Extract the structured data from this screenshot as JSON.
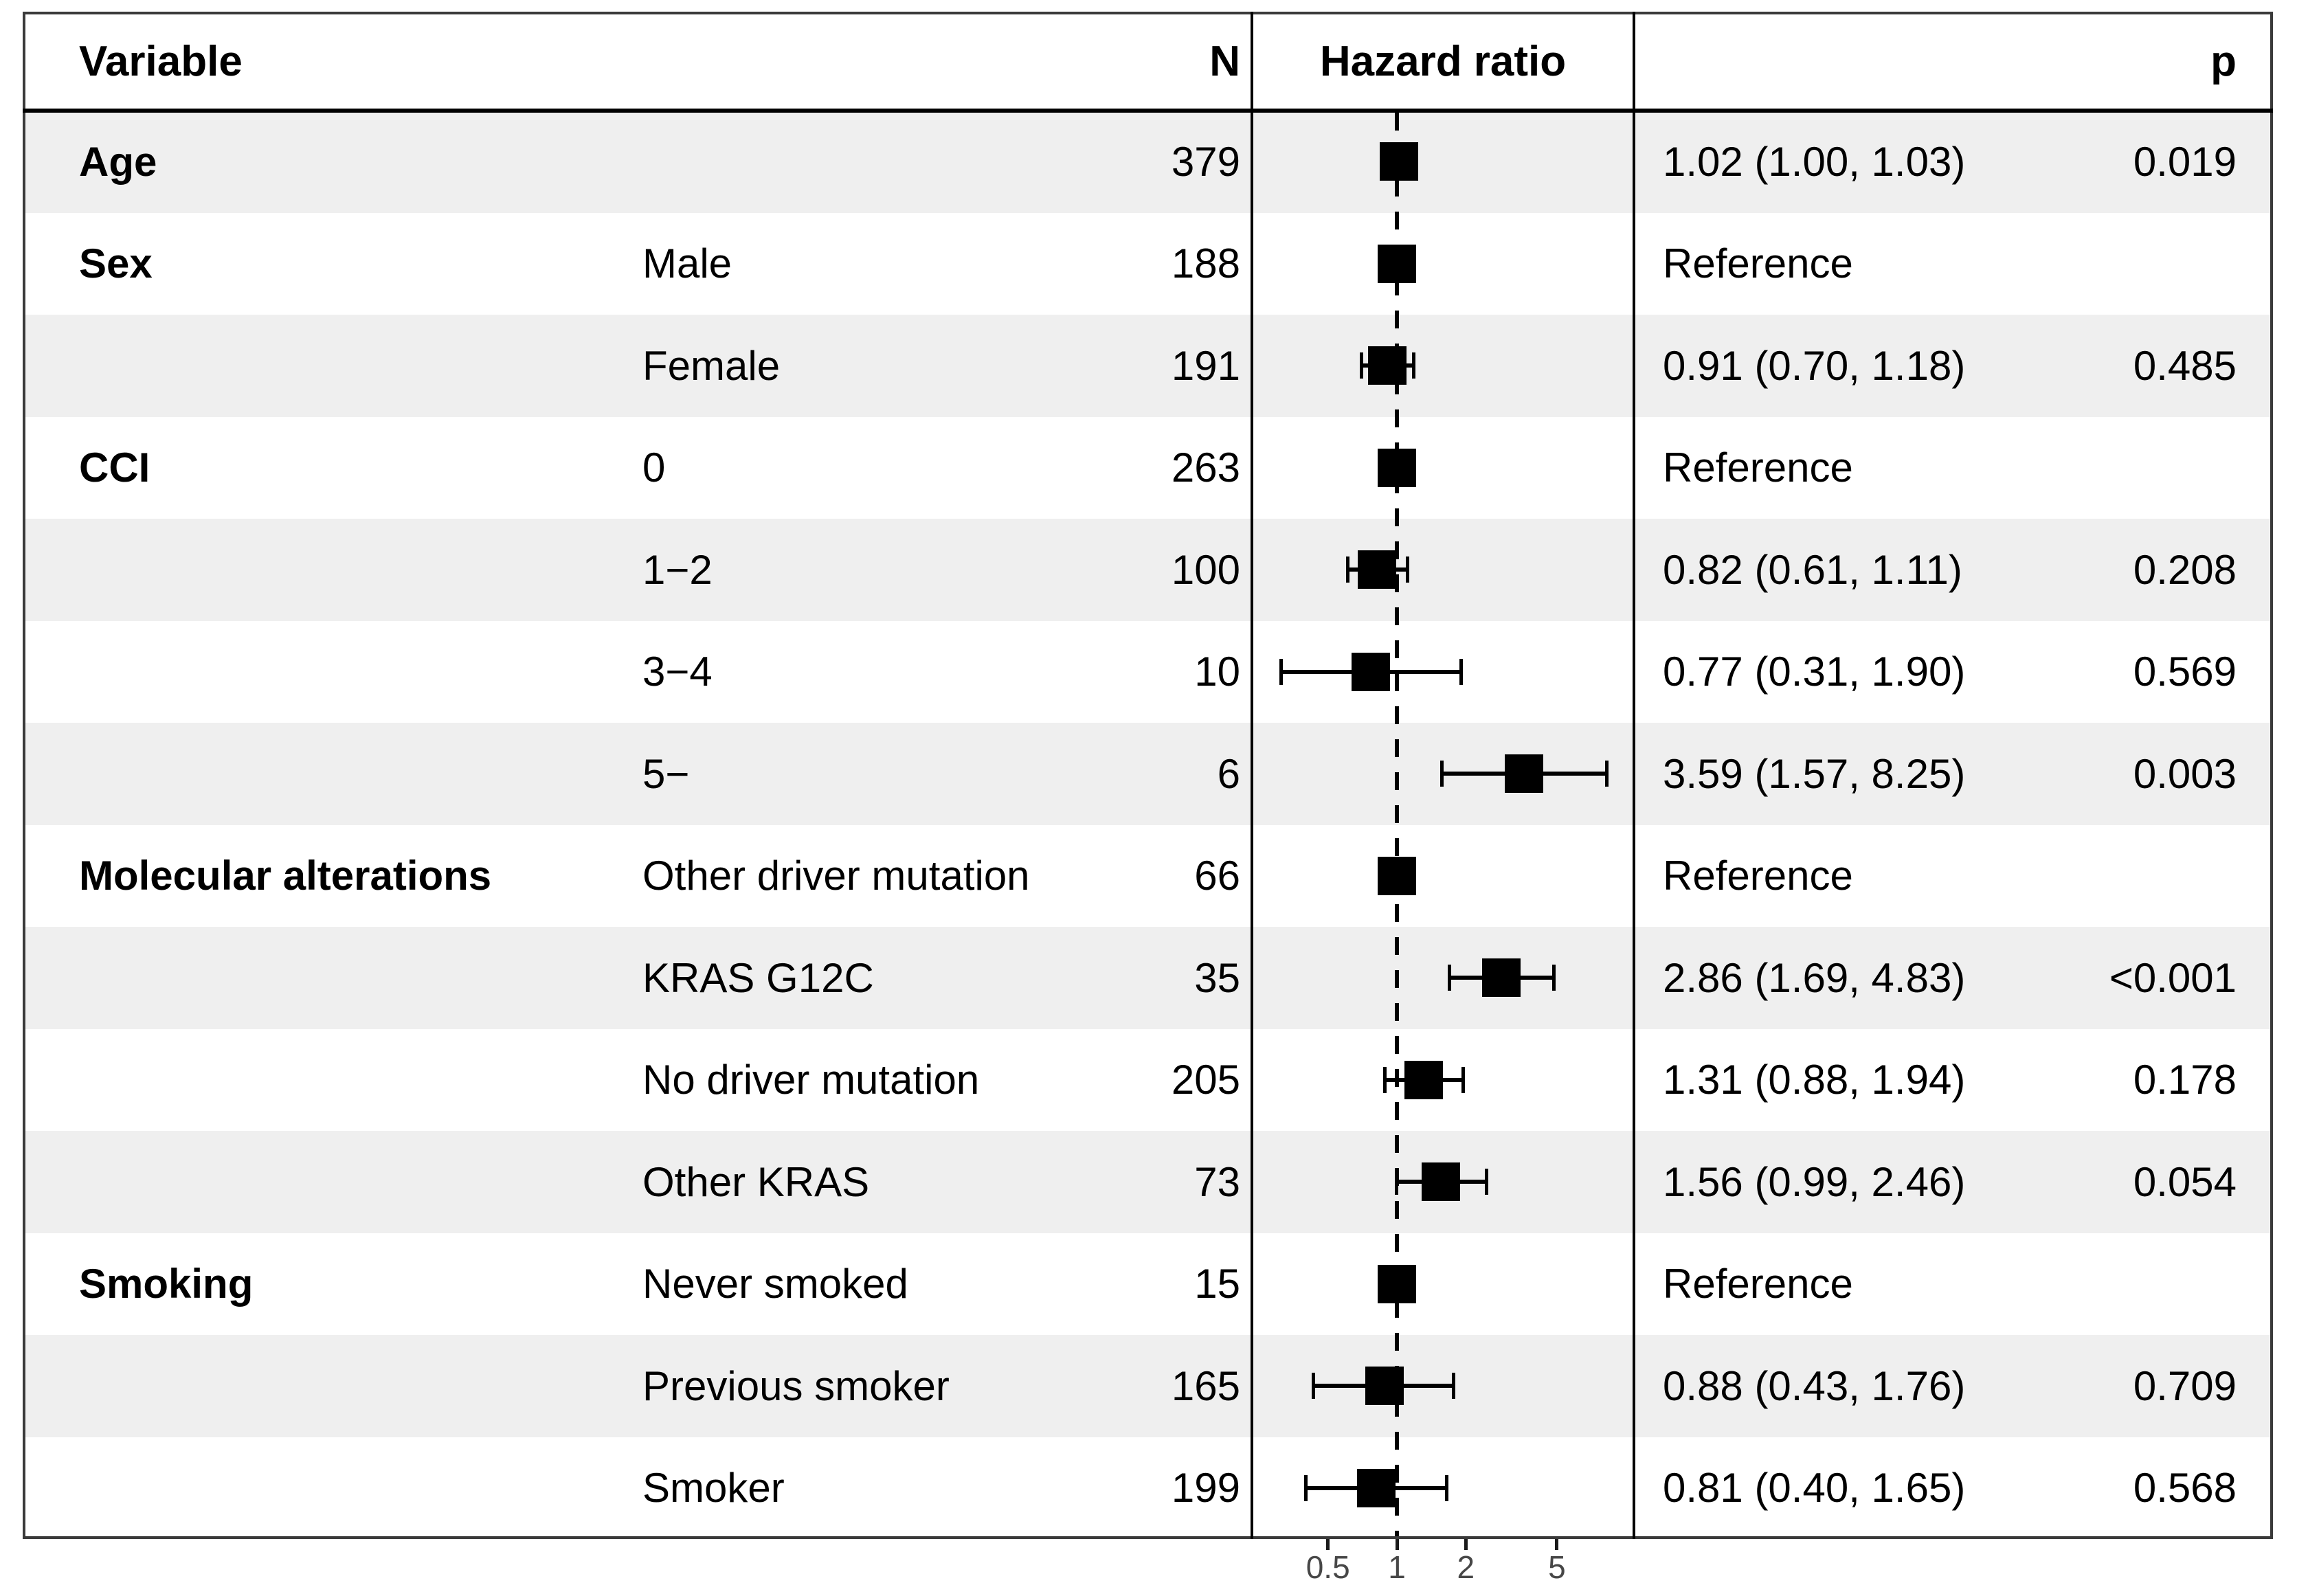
{
  "figure": {
    "header": {
      "variable": "Variable",
      "n": "N",
      "hazard_ratio": "Hazard ratio",
      "p": "p"
    },
    "colors": {
      "stripe": "#efefef",
      "row_alt": "#ffffff",
      "text": "#000000",
      "marker": "#000000",
      "border": "#3a3a3a",
      "divider": "#000000",
      "axis_label": "#474747"
    }
  },
  "chart_data": {
    "type": "scatter",
    "variant": "forest-plot",
    "title": "Hazard ratio",
    "xlabel": "Hazard ratio",
    "xscale": "log10",
    "xticks": [
      0.5,
      1,
      2,
      5
    ],
    "xtick_labels": [
      "0.5",
      "1",
      "2",
      "5"
    ],
    "xrange": [
      0.29,
      11.5
    ],
    "reference_line": 1,
    "legend": "none",
    "grid": "off",
    "rows": [
      {
        "variable": "Age",
        "level": "",
        "n": "379",
        "hr": 1.02,
        "ci_low": 1.0,
        "ci_high": 1.03,
        "estimate": "1.02 (1.00, 1.03)",
        "p": "0.019",
        "reference": false
      },
      {
        "variable": "Sex",
        "level": "Male",
        "n": "188",
        "hr": 1,
        "ci_low": null,
        "ci_high": null,
        "estimate": "Reference",
        "p": "",
        "reference": true
      },
      {
        "variable": "",
        "level": "Female",
        "n": "191",
        "hr": 0.91,
        "ci_low": 0.7,
        "ci_high": 1.18,
        "estimate": "0.91 (0.70, 1.18)",
        "p": "0.485",
        "reference": false
      },
      {
        "variable": "CCI",
        "level": "0",
        "n": "263",
        "hr": 1,
        "ci_low": null,
        "ci_high": null,
        "estimate": "Reference",
        "p": "",
        "reference": true
      },
      {
        "variable": "",
        "level": "1−2",
        "n": "100",
        "hr": 0.82,
        "ci_low": 0.61,
        "ci_high": 1.11,
        "estimate": "0.82 (0.61, 1.11)",
        "p": "0.208",
        "reference": false
      },
      {
        "variable": "",
        "level": "3−4",
        "n": "10",
        "hr": 0.77,
        "ci_low": 0.31,
        "ci_high": 1.9,
        "estimate": "0.77 (0.31, 1.90)",
        "p": "0.569",
        "reference": false
      },
      {
        "variable": "",
        "level": "5−",
        "n": "6",
        "hr": 3.59,
        "ci_low": 1.57,
        "ci_high": 8.25,
        "estimate": "3.59 (1.57, 8.25)",
        "p": "0.003",
        "reference": false
      },
      {
        "variable": "Molecular alterations",
        "level": "Other driver mutation",
        "n": "66",
        "hr": 1,
        "ci_low": null,
        "ci_high": null,
        "estimate": "Reference",
        "p": "",
        "reference": true
      },
      {
        "variable": "",
        "level": "KRAS G12C",
        "n": "35",
        "hr": 2.86,
        "ci_low": 1.69,
        "ci_high": 4.83,
        "estimate": "2.86 (1.69, 4.83)",
        "p": "<0.001",
        "reference": false
      },
      {
        "variable": "",
        "level": "No driver mutation",
        "n": "205",
        "hr": 1.31,
        "ci_low": 0.88,
        "ci_high": 1.94,
        "estimate": "1.31 (0.88, 1.94)",
        "p": "0.178",
        "reference": false
      },
      {
        "variable": "",
        "level": "Other KRAS",
        "n": "73",
        "hr": 1.56,
        "ci_low": 0.99,
        "ci_high": 2.46,
        "estimate": "1.56 (0.99, 2.46)",
        "p": "0.054",
        "reference": false
      },
      {
        "variable": "Smoking",
        "level": "Never smoked",
        "n": "15",
        "hr": 1,
        "ci_low": null,
        "ci_high": null,
        "estimate": "Reference",
        "p": "",
        "reference": true
      },
      {
        "variable": "",
        "level": "Previous smoker",
        "n": "165",
        "hr": 0.88,
        "ci_low": 0.43,
        "ci_high": 1.76,
        "estimate": "0.88 (0.43, 1.76)",
        "p": "0.709",
        "reference": false
      },
      {
        "variable": "",
        "level": "Smoker",
        "n": "199",
        "hr": 0.81,
        "ci_low": 0.4,
        "ci_high": 1.65,
        "estimate": "0.81 (0.40, 1.65)",
        "p": "0.568",
        "reference": false
      }
    ]
  }
}
